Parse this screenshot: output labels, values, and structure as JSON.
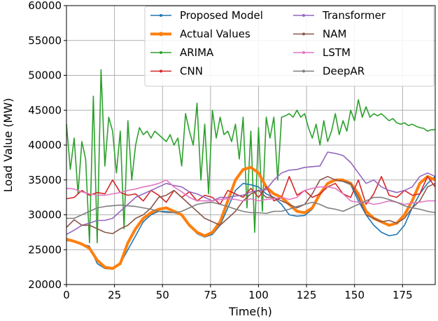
{
  "chart_data": {
    "type": "line",
    "title": "",
    "xlabel": "Time(h)",
    "ylabel": "Load Value (MW)",
    "xlim": [
      0,
      192
    ],
    "ylim": [
      20000,
      60000
    ],
    "xticks": [
      0,
      25,
      50,
      75,
      100,
      125,
      150,
      175
    ],
    "yticks": [
      20000,
      25000,
      30000,
      35000,
      40000,
      45000,
      50000,
      55000,
      60000
    ],
    "grid": true,
    "legend_placement": "top-right",
    "x": [
      0,
      4,
      8,
      12,
      16,
      20,
      24,
      28,
      32,
      36,
      40,
      44,
      48,
      52,
      56,
      60,
      64,
      68,
      72,
      76,
      80,
      84,
      88,
      92,
      96,
      100,
      104,
      108,
      112,
      116,
      120,
      124,
      128,
      132,
      136,
      140,
      144,
      148,
      152,
      156,
      160,
      164,
      168,
      172,
      176,
      180,
      184,
      188,
      192
    ],
    "series": [
      {
        "name": "Proposed Model",
        "color": "#1f77b4",
        "values": [
          26300,
          26200,
          25800,
          25500,
          23000,
          22300,
          22200,
          23000,
          25000,
          27000,
          29000,
          30000,
          30500,
          30500,
          30300,
          30000,
          28500,
          27300,
          26800,
          27200,
          28500,
          31000,
          33500,
          34500,
          34300,
          34000,
          33000,
          32500,
          31500,
          30000,
          29800,
          29900,
          30800,
          33000,
          34500,
          35000,
          34800,
          34300,
          32000,
          30000,
          28500,
          27500,
          27000,
          27200,
          28500,
          31000,
          33000,
          34500,
          35500
        ]
      },
      {
        "name": "Actual Values",
        "color": "#ff7f0e",
        "values": [
          26500,
          26200,
          25800,
          25200,
          23500,
          22500,
          22300,
          23000,
          26000,
          28000,
          29500,
          30300,
          30800,
          31000,
          30500,
          30000,
          28500,
          27500,
          27000,
          27500,
          29000,
          32000,
          35000,
          36500,
          36800,
          36000,
          34000,
          33000,
          32500,
          31500,
          30500,
          30300,
          31000,
          33000,
          34500,
          35000,
          35000,
          34500,
          33000,
          30500,
          29500,
          29000,
          28500,
          28800,
          30000,
          32000,
          34500,
          35500,
          35000
        ]
      },
      {
        "name": "ARIMA",
        "color": "#2ca02c",
        "x": [
          0,
          2,
          4,
          6,
          8,
          10,
          12,
          14,
          16,
          18,
          20,
          22,
          24,
          26,
          28,
          30,
          32,
          34,
          36,
          38,
          40,
          42,
          44,
          46,
          48,
          50,
          52,
          54,
          56,
          58,
          60,
          62,
          64,
          66,
          68,
          70,
          72,
          74,
          76,
          78,
          80,
          82,
          84,
          86,
          88,
          90,
          92,
          94,
          96,
          98,
          100,
          102,
          104,
          106,
          108,
          110,
          112,
          114,
          116,
          118,
          120,
          122,
          124,
          126,
          128,
          130,
          132,
          134,
          136,
          138,
          140,
          142,
          144,
          146,
          148,
          150,
          152,
          154,
          156,
          158,
          160,
          162,
          164,
          166,
          168,
          170,
          172,
          174,
          176,
          178,
          180,
          182,
          184,
          186,
          188,
          190,
          192
        ],
        "values": [
          43000,
          36500,
          41000,
          33000,
          40500,
          38000,
          26000,
          47000,
          26000,
          50800,
          37000,
          44000,
          42000,
          36000,
          42000,
          28000,
          43500,
          35000,
          40000,
          42500,
          41500,
          42000,
          41000,
          42000,
          41500,
          41000,
          40500,
          41500,
          40000,
          41000,
          37000,
          44500,
          42000,
          40000,
          46000,
          35000,
          43000,
          33000,
          45000,
          41000,
          44000,
          41500,
          42000,
          40500,
          43000,
          38000,
          44000,
          31000,
          42000,
          27500,
          42500,
          30500,
          44000,
          41000,
          44000,
          35000,
          44000,
          44200,
          44500,
          44000,
          45000,
          44000,
          44500,
          42500,
          41000,
          43000,
          40000,
          43500,
          40500,
          42000,
          44500,
          41500,
          43500,
          42000,
          45000,
          43500,
          46500,
          44000,
          45500,
          44000,
          44500,
          44200,
          44500,
          44000,
          43500,
          43800,
          43200,
          43000,
          43200,
          42800,
          43000,
          42700,
          42500,
          42400,
          42000,
          42200,
          42200
        ]
      },
      {
        "name": "CNN",
        "color": "#d62728",
        "values": [
          32300,
          32500,
          33500,
          32800,
          33200,
          33000,
          35000,
          33200,
          32800,
          33000,
          32000,
          33500,
          32800,
          31800,
          33500,
          32500,
          33300,
          32000,
          32800,
          32500,
          31500,
          33500,
          33000,
          32500,
          33800,
          32500,
          34000,
          32000,
          32500,
          35500,
          32800,
          33500,
          32500,
          33000,
          34000,
          34500,
          33000,
          32500,
          35000,
          31500,
          33000,
          35500,
          32800,
          32500,
          33500,
          32800,
          33000,
          35500,
          34000
        ]
      },
      {
        "name": "Transformer",
        "color": "#9467bd",
        "values": [
          27200,
          27800,
          28500,
          28800,
          29200,
          29200,
          29500,
          30500,
          31500,
          32500,
          33000,
          33500,
          34000,
          34500,
          34200,
          34000,
          33300,
          33000,
          32500,
          32000,
          32500,
          32500,
          32700,
          32800,
          33300,
          33500,
          33600,
          35000,
          36000,
          36400,
          36500,
          36800,
          36900,
          37000,
          39000,
          38800,
          38500,
          37500,
          36000,
          34500,
          35000,
          34000,
          33500,
          33200,
          33500,
          34000,
          35500,
          36000,
          35500
        ]
      },
      {
        "name": "NAM",
        "color": "#8c564b",
        "values": [
          28200,
          29300,
          28500,
          28500,
          28000,
          27500,
          27300,
          28000,
          28500,
          29500,
          30000,
          31000,
          32500,
          32800,
          33500,
          32500,
          31500,
          30500,
          29500,
          29000,
          28500,
          29500,
          30500,
          32000,
          33000,
          33500,
          32500,
          32500,
          32000,
          31500,
          31000,
          31500,
          33000,
          35000,
          35500,
          35000,
          34800,
          34500,
          32500,
          30000,
          29500,
          29000,
          29200,
          28800,
          29500,
          31000,
          32000,
          34000,
          34500
        ]
      },
      {
        "name": "LSTM",
        "color": "#e377c2",
        "values": [
          33800,
          33700,
          33300,
          33000,
          32800,
          32800,
          33000,
          33200,
          33500,
          33700,
          34000,
          34200,
          34500,
          35000,
          34000,
          33300,
          32500,
          32000,
          32000,
          32000,
          32200,
          32300,
          32200,
          32000,
          32300,
          32000,
          32200,
          32300,
          32500,
          32200,
          32500,
          33500,
          33800,
          34000,
          34000,
          33800,
          33000,
          32000,
          31800,
          31800,
          31500,
          31700,
          32000,
          31800,
          31500,
          31700,
          31800,
          32000,
          32000
        ]
      },
      {
        "name": "DeepAR",
        "color": "#7f7f7f",
        "values": [
          29500,
          29500,
          30000,
          30500,
          31000,
          31200,
          31300,
          31400,
          31300,
          31200,
          31000,
          30800,
          30500,
          30300,
          30300,
          30500,
          31000,
          31500,
          31700,
          31800,
          31500,
          31200,
          30800,
          30500,
          30300,
          30300,
          30200,
          30500,
          30500,
          30800,
          31200,
          31500,
          31800,
          31500,
          31000,
          30800,
          30500,
          31000,
          31500,
          32000,
          32500,
          32500,
          32200,
          31800,
          31300,
          31000,
          30800,
          30500,
          30300
        ]
      }
    ]
  }
}
